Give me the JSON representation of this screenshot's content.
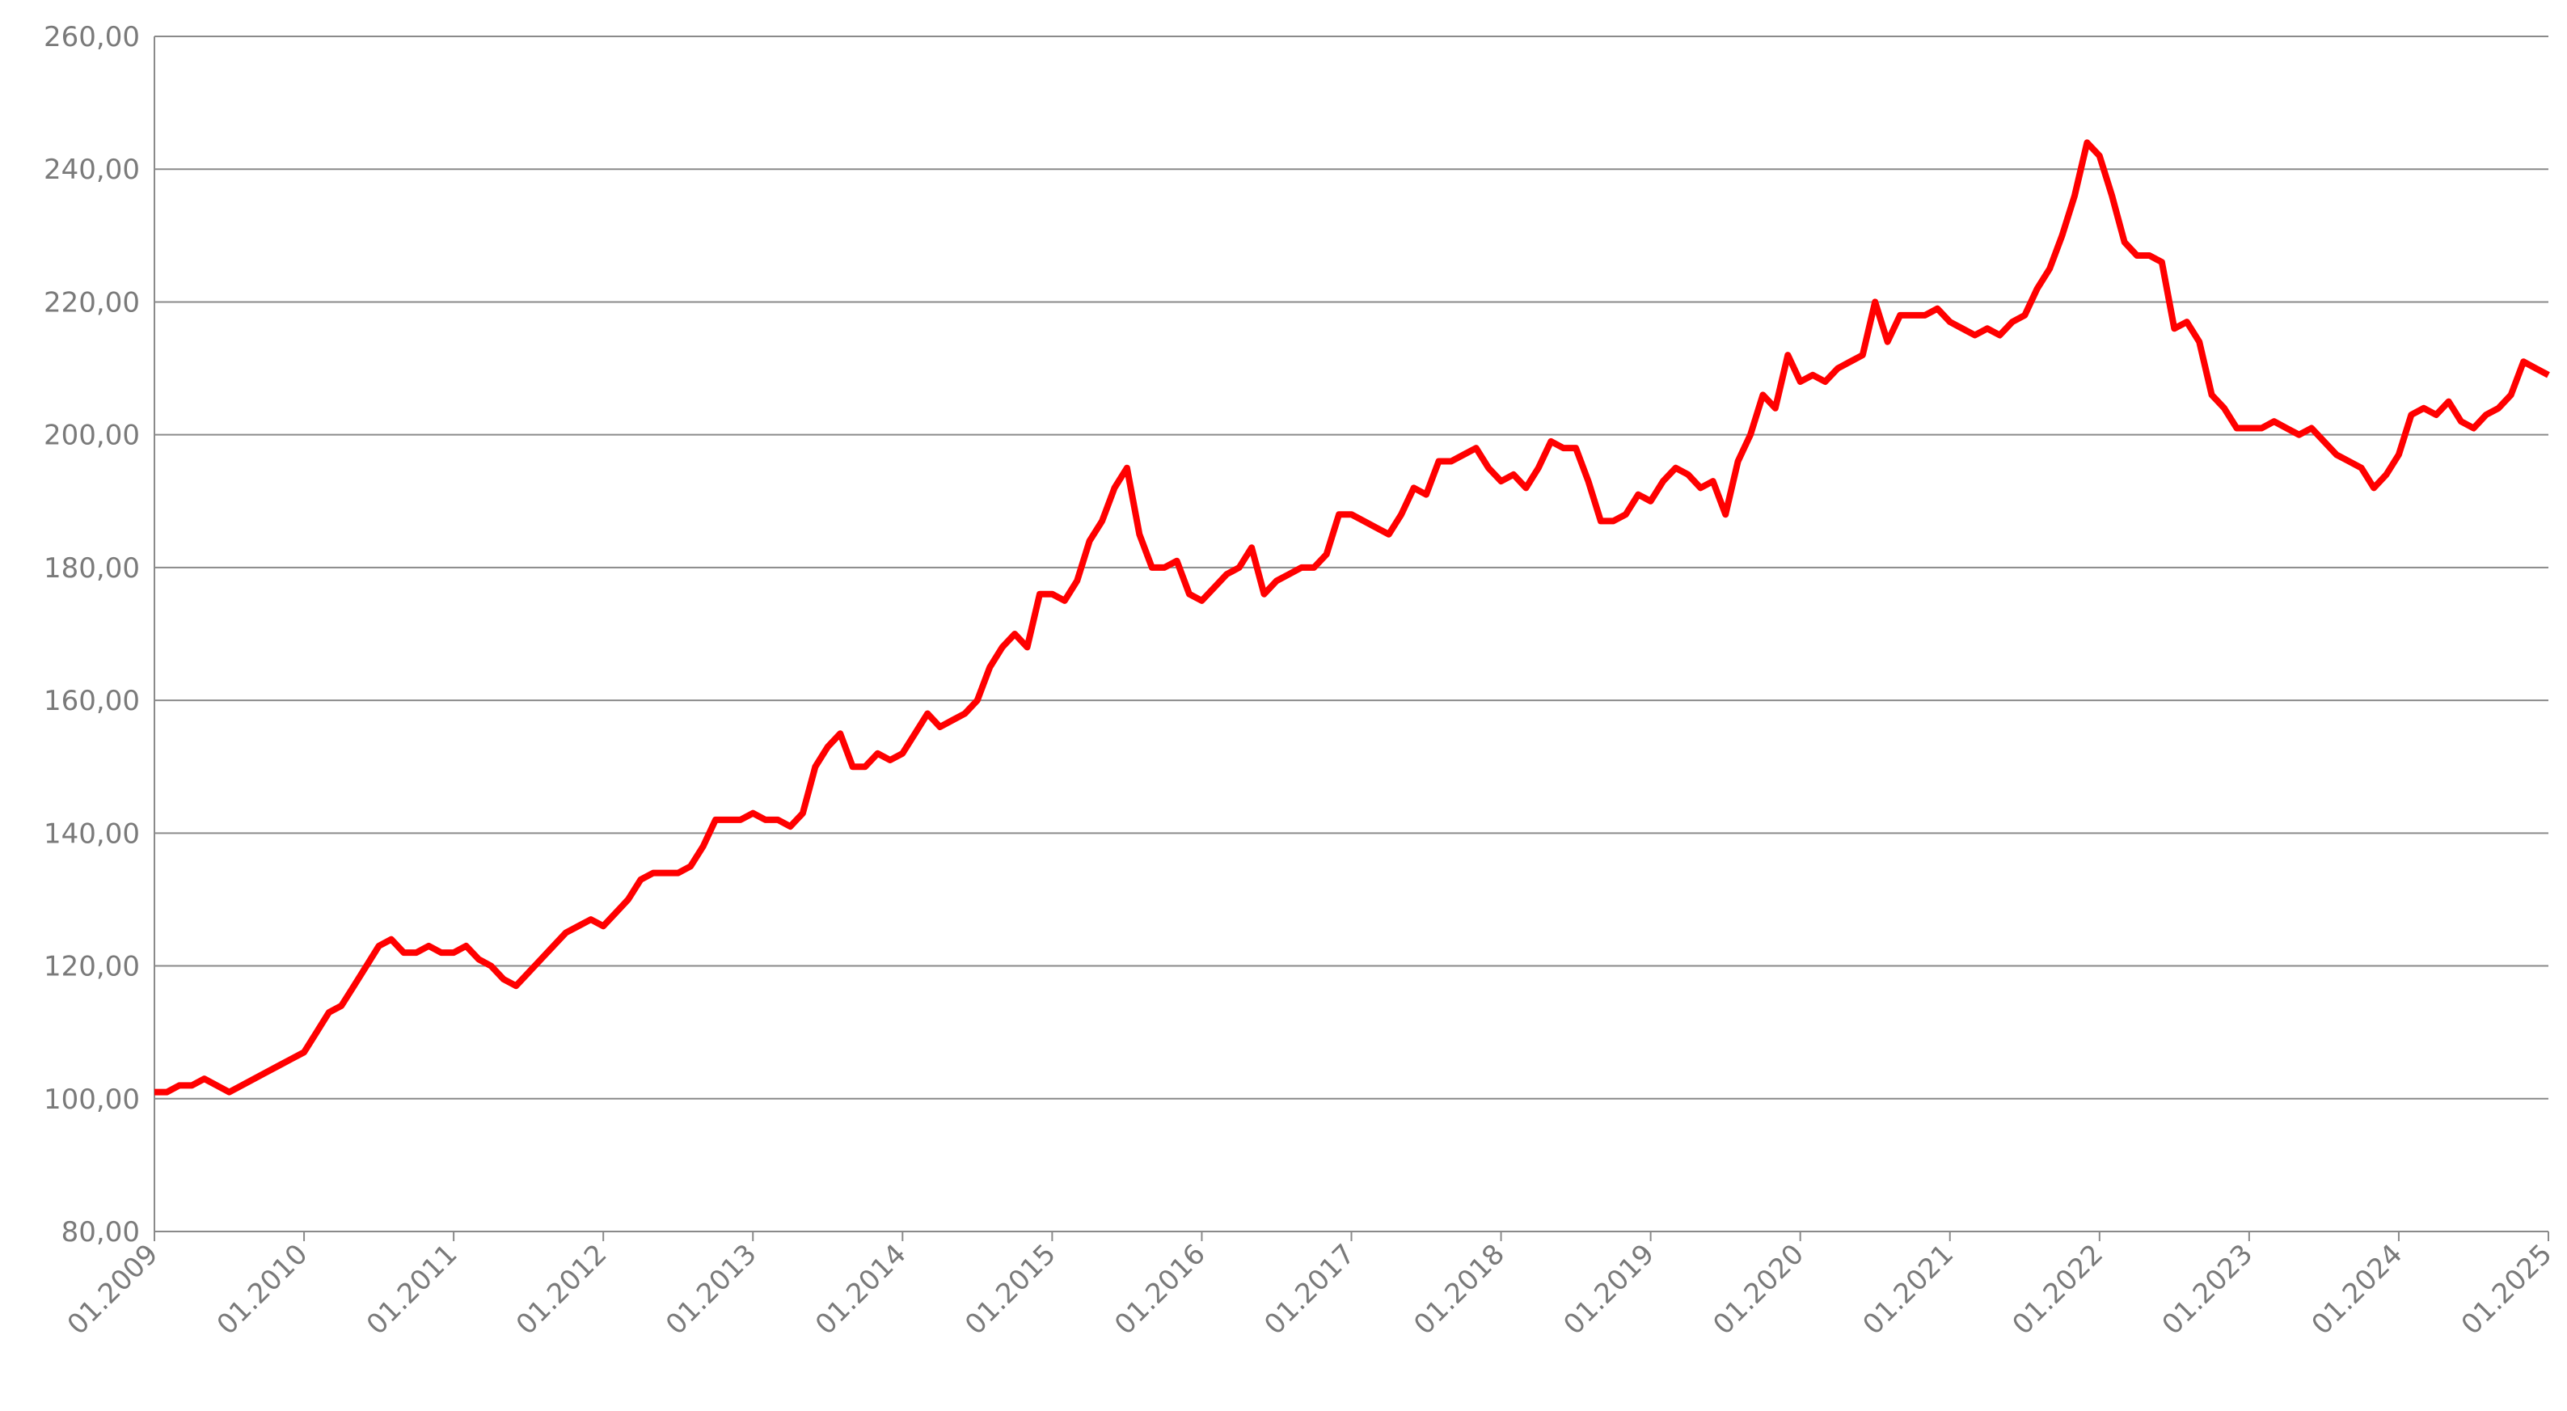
{
  "chart_data": {
    "type": "line",
    "x": [
      "01.2009",
      "02.2009",
      "03.2009",
      "04.2009",
      "05.2009",
      "06.2009",
      "07.2009",
      "08.2009",
      "09.2009",
      "10.2009",
      "11.2009",
      "12.2009",
      "01.2010",
      "02.2010",
      "03.2010",
      "04.2010",
      "05.2010",
      "06.2010",
      "07.2010",
      "08.2010",
      "09.2010",
      "10.2010",
      "11.2010",
      "12.2010",
      "01.2011",
      "02.2011",
      "03.2011",
      "04.2011",
      "05.2011",
      "06.2011",
      "07.2011",
      "08.2011",
      "09.2011",
      "10.2011",
      "11.2011",
      "12.2011",
      "01.2012",
      "02.2012",
      "03.2012",
      "04.2012",
      "05.2012",
      "06.2012",
      "07.2012",
      "08.2012",
      "09.2012",
      "10.2012",
      "11.2012",
      "12.2012",
      "01.2013",
      "02.2013",
      "03.2013",
      "04.2013",
      "05.2013",
      "06.2013",
      "07.2013",
      "08.2013",
      "09.2013",
      "10.2013",
      "11.2013",
      "12.2013",
      "01.2014",
      "02.2014",
      "03.2014",
      "04.2014",
      "05.2014",
      "06.2014",
      "07.2014",
      "08.2014",
      "09.2014",
      "10.2014",
      "11.2014",
      "12.2014",
      "01.2015",
      "02.2015",
      "03.2015",
      "04.2015",
      "05.2015",
      "06.2015",
      "07.2015",
      "08.2015",
      "09.2015",
      "10.2015",
      "11.2015",
      "12.2015",
      "01.2016",
      "02.2016",
      "03.2016",
      "04.2016",
      "05.2016",
      "06.2016",
      "07.2016",
      "08.2016",
      "09.2016",
      "10.2016",
      "11.2016",
      "12.2016",
      "01.2017",
      "02.2017",
      "03.2017",
      "04.2017",
      "05.2017",
      "06.2017",
      "07.2017",
      "08.2017",
      "09.2017",
      "10.2017",
      "11.2017",
      "12.2017",
      "01.2018",
      "02.2018",
      "03.2018",
      "04.2018",
      "05.2018",
      "06.2018",
      "07.2018",
      "08.2018",
      "09.2018",
      "10.2018",
      "11.2018",
      "12.2018",
      "01.2019",
      "02.2019",
      "03.2019",
      "04.2019",
      "05.2019",
      "06.2019",
      "07.2019",
      "08.2019",
      "09.2019",
      "10.2019",
      "11.2019",
      "12.2019",
      "01.2020",
      "02.2020",
      "03.2020",
      "04.2020",
      "05.2020",
      "06.2020",
      "07.2020",
      "08.2020",
      "09.2020",
      "10.2020",
      "11.2020",
      "12.2020",
      "01.2021",
      "02.2021",
      "03.2021",
      "04.2021",
      "05.2021",
      "06.2021",
      "07.2021",
      "08.2021",
      "09.2021",
      "10.2021",
      "11.2021",
      "12.2021",
      "01.2022",
      "02.2022",
      "03.2022",
      "04.2022",
      "05.2022",
      "06.2022",
      "07.2022",
      "08.2022",
      "09.2022",
      "10.2022",
      "11.2022",
      "12.2022",
      "01.2023",
      "02.2023",
      "03.2023",
      "04.2023",
      "05.2023",
      "06.2023",
      "07.2023",
      "08.2023",
      "09.2023",
      "10.2023",
      "11.2023",
      "12.2023",
      "01.2024",
      "02.2024",
      "03.2024",
      "04.2024",
      "05.2024",
      "06.2024",
      "07.2024",
      "08.2024",
      "09.2024",
      "10.2024",
      "11.2024",
      "12.2024",
      "01.2025"
    ],
    "series": [
      {
        "color": "#ff0000",
        "values": [
          101,
          101,
          102,
          102,
          103,
          102,
          101,
          102,
          103,
          104,
          105,
          106,
          107,
          110,
          113,
          114,
          117,
          120,
          123,
          124,
          122,
          122,
          123,
          122,
          122,
          123,
          121,
          120,
          118,
          117,
          119,
          121,
          123,
          125,
          126,
          127,
          126,
          128,
          130,
          133,
          134,
          134,
          134,
          135,
          138,
          142,
          142,
          142,
          143,
          142,
          142,
          141,
          143,
          150,
          153,
          155,
          150,
          150,
          152,
          151,
          152,
          155,
          158,
          156,
          157,
          158,
          160,
          165,
          168,
          170,
          168,
          176,
          176,
          175,
          178,
          184,
          187,
          192,
          195,
          185,
          180,
          180,
          181,
          176,
          175,
          177,
          179,
          180,
          183,
          176,
          178,
          179,
          180,
          180,
          182,
          188,
          188,
          187,
          186,
          185,
          188,
          192,
          191,
          196,
          196,
          197,
          198,
          195,
          193,
          194,
          192,
          195,
          199,
          198,
          198,
          193,
          187,
          187,
          188,
          191,
          190,
          193,
          195,
          194,
          192,
          193,
          188,
          196,
          200,
          206,
          204,
          212,
          208,
          209,
          208,
          210,
          211,
          212,
          220,
          214,
          218,
          218,
          218,
          219,
          217,
          216,
          215,
          216,
          215,
          217,
          218,
          222,
          225,
          230,
          236,
          244,
          242,
          236,
          229,
          227,
          227,
          226,
          216,
          217,
          214,
          206,
          204,
          201,
          201,
          201,
          202,
          201,
          200,
          201,
          199,
          197,
          196,
          195,
          192,
          194,
          197,
          203,
          204,
          203,
          205,
          202,
          201,
          203,
          204,
          206,
          211,
          210,
          209
        ]
      }
    ],
    "xlim": [
      "01.2009",
      "01.2025"
    ],
    "xticks": [
      "01.2009",
      "01.2010",
      "01.2011",
      "01.2012",
      "01.2013",
      "01.2014",
      "01.2015",
      "01.2016",
      "01.2017",
      "01.2018",
      "01.2019",
      "01.2020",
      "01.2021",
      "01.2022",
      "01.2023",
      "01.2024",
      "01.2025"
    ],
    "ylim": [
      80,
      260
    ],
    "yticks": [
      {
        "value": 80,
        "label": "80,00"
      },
      {
        "value": 100,
        "label": "100,00"
      },
      {
        "value": 120,
        "label": "120,00"
      },
      {
        "value": 140,
        "label": "140,00"
      },
      {
        "value": 160,
        "label": "160,00"
      },
      {
        "value": 180,
        "label": "180,00"
      },
      {
        "value": 200,
        "label": "200,00"
      },
      {
        "value": 220,
        "label": "220,00"
      },
      {
        "value": 240,
        "label": "240,00"
      },
      {
        "value": 260,
        "label": "260,00"
      }
    ],
    "grid": true
  }
}
